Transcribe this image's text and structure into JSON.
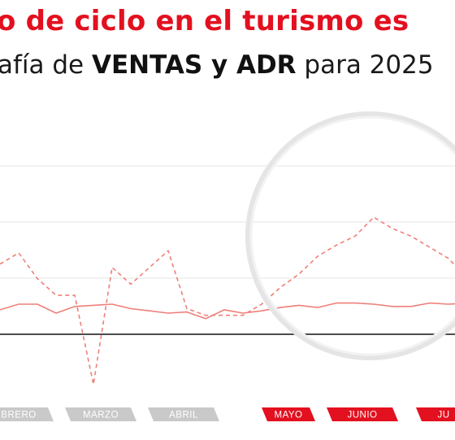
{
  "header": {
    "title": "o de ciclo en el turismo es",
    "subtitle_pre": "afía de ",
    "subtitle_bold": "VENTAS y ADR",
    "subtitle_post": " para 2025"
  },
  "colors": {
    "accent": "#e3101f",
    "series_line": "#ef7f79",
    "month_gray": "#c9c9c9",
    "month_red": "#e3101f",
    "baseline": "#111111",
    "grid": "#e6e6e6"
  },
  "chart_data": {
    "type": "line",
    "title": "",
    "xlabel": "",
    "ylabel": "",
    "grid": true,
    "highlight": "circle around May–June",
    "months": [
      {
        "label": "BRERO",
        "highlight": false
      },
      {
        "label": "MARZO",
        "highlight": false
      },
      {
        "label": "ABRIL",
        "highlight": false
      },
      {
        "label": "MAYO",
        "highlight": true
      },
      {
        "label": "JUNIO",
        "highlight": true
      },
      {
        "label": "JU",
        "highlight": true
      }
    ],
    "series": [
      {
        "style": "dashed",
        "values": [
          63,
          73,
          50,
          35,
          35,
          -45,
          60,
          45,
          60,
          75,
          23,
          17,
          17,
          17,
          27,
          42,
          54,
          70,
          80,
          88,
          105,
          95,
          88,
          78,
          68,
          50,
          46,
          46
        ]
      },
      {
        "style": "solid",
        "values": [
          22,
          27,
          27,
          19,
          25,
          26,
          27,
          23,
          21,
          19,
          20,
          14,
          22,
          19,
          21,
          24,
          26,
          24,
          28,
          28,
          27,
          25,
          25,
          28,
          27,
          28,
          28,
          28
        ]
      }
    ]
  }
}
